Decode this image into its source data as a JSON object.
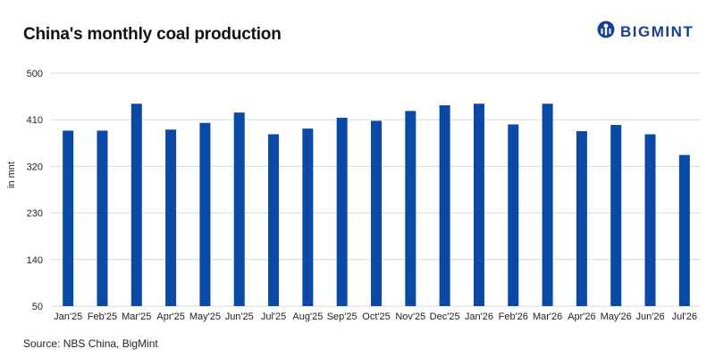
{
  "header": {
    "title": "China's monthly coal production",
    "logo_text": "BIGMINT"
  },
  "footer": {
    "source": "Source: NBS China, BigMint"
  },
  "colors": {
    "bar": "#0a4aa6",
    "brand": "#1b3f8f",
    "grid": "#d9d9d9"
  },
  "icons": {
    "logo": "bigmint-logo-icon"
  },
  "chart_data": {
    "type": "bar",
    "title": "China's monthly coal production",
    "xlabel": "",
    "ylabel": "in mnt",
    "ylim": [
      50,
      500
    ],
    "yticks": [
      50,
      140,
      230,
      320,
      410,
      500
    ],
    "grid": true,
    "categories": [
      "Jan'25",
      "Feb'25",
      "Mar'25",
      "Apr'25",
      "May'25",
      "Jun'25",
      "Jul'25",
      "Aug'25",
      "Sep'25",
      "Oct'25",
      "Nov'25",
      "Dec'25",
      "Jan'26",
      "Feb'26",
      "Mar'26",
      "Apr'26",
      "May'26",
      "Jun'26",
      "Jul'26"
    ],
    "values": [
      389,
      389,
      441,
      391,
      404,
      424,
      382,
      393,
      414,
      408,
      427,
      438,
      441,
      401,
      441,
      388,
      400,
      382,
      342
    ]
  }
}
